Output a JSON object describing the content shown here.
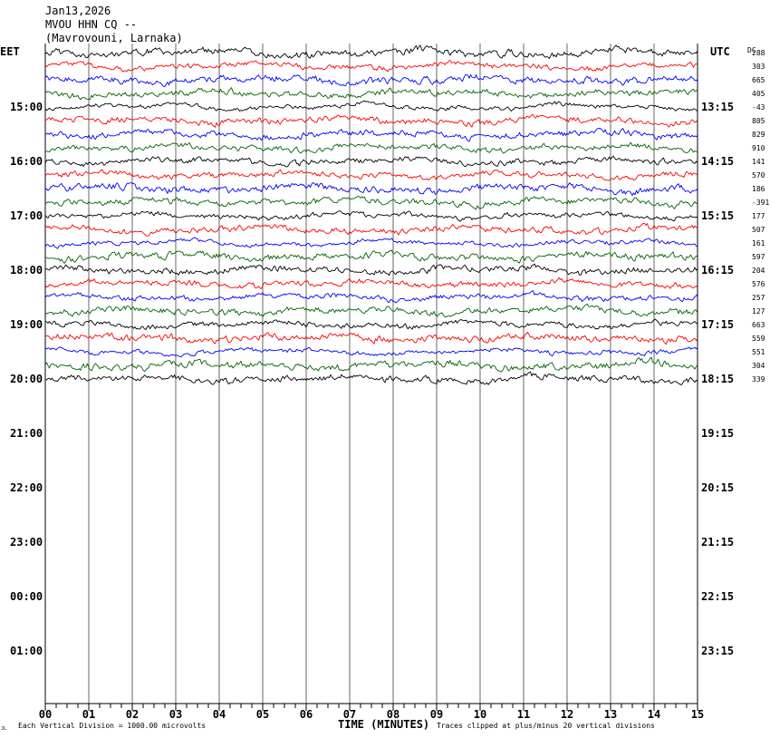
{
  "header": {
    "date": "Jan13,2026",
    "station": "MVOU HHN CQ --",
    "location": "(Mavrovouni, Larnaka)",
    "left_tz": "EET",
    "right_tz": "UTC",
    "dc_label": "DC"
  },
  "footer": {
    "xlabel": "TIME (MINUTES)",
    "scale_note": "Each Vertical Division = 1000.00 microvolts",
    "clip_note": "Traces clipped at plus/minus 20 vertical divisions",
    "corner_mark": "JL"
  },
  "colors": {
    "trace_cycle": [
      "#000000",
      "#ff0000",
      "#0000ff",
      "#006400"
    ],
    "grid": "#000000",
    "background": "#ffffff"
  },
  "chart_data": {
    "type": "line",
    "subtype": "helicorder",
    "x_ticks": [
      "00",
      "01",
      "02",
      "03",
      "04",
      "05",
      "06",
      "07",
      "08",
      "09",
      "10",
      "11",
      "12",
      "13",
      "14",
      "15"
    ],
    "xlim": [
      0,
      15
    ],
    "minor_ticks_per_minute": 4,
    "hour_rows": [
      {
        "eet": "",
        "utc": ""
      },
      {
        "eet": "15:00",
        "utc": "13:15"
      },
      {
        "eet": "16:00",
        "utc": "14:15"
      },
      {
        "eet": "17:00",
        "utc": "15:15"
      },
      {
        "eet": "18:00",
        "utc": "16:15"
      },
      {
        "eet": "19:00",
        "utc": "17:15"
      },
      {
        "eet": "20:00",
        "utc": "18:15"
      },
      {
        "eet": "21:00",
        "utc": "19:15"
      },
      {
        "eet": "22:00",
        "utc": "20:15"
      },
      {
        "eet": "23:00",
        "utc": "21:15"
      },
      {
        "eet": "00:00",
        "utc": "22:15"
      },
      {
        "eet": "01:00",
        "utc": "23:15"
      }
    ],
    "trace_dc_offsets": [
      "288",
      "303",
      "665",
      "405",
      "-43",
      "805",
      "829",
      "910",
      "141",
      "570",
      "186",
      "-391",
      "177",
      "507",
      "161",
      "597",
      "204",
      "576",
      "257",
      "127",
      "663",
      "559",
      "551",
      "304",
      "339"
    ],
    "traces_per_hour": 4,
    "trace_count": 25
  }
}
